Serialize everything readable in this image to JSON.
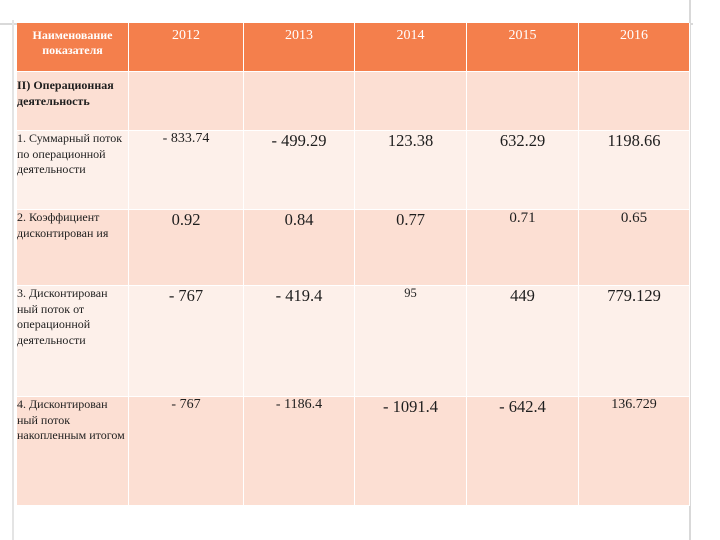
{
  "table": {
    "header": {
      "label": "Наименование показателя",
      "years": [
        "2012",
        "2013",
        "2014",
        "2015",
        "2016"
      ]
    },
    "rows": [
      {
        "label": "II) Операционная деятельность",
        "values": [
          "",
          "",
          "",
          "",
          ""
        ]
      },
      {
        "label": "1. Суммарный поток по операционной деятельности",
        "values": [
          "- 833.74",
          "- 499.29",
          "123.38",
          "632.29",
          "1198.66"
        ]
      },
      {
        "label": "2. Коэффициент дисконтирован ия",
        "values": [
          "0.92",
          "0.84",
          "0.77",
          "0.71",
          "0.65"
        ]
      },
      {
        "label": "3. Дисконтирован ный поток от операционной деятельности",
        "values": [
          "- 767",
          "- 419.4",
          "95",
          "449",
          "779.129"
        ]
      },
      {
        "label": "4. Дисконтирован ный поток накопленным итогом",
        "values": [
          "- 767",
          "- 1186.4",
          "- 1091.4",
          "- 642.4",
          "136.729"
        ]
      }
    ]
  }
}
